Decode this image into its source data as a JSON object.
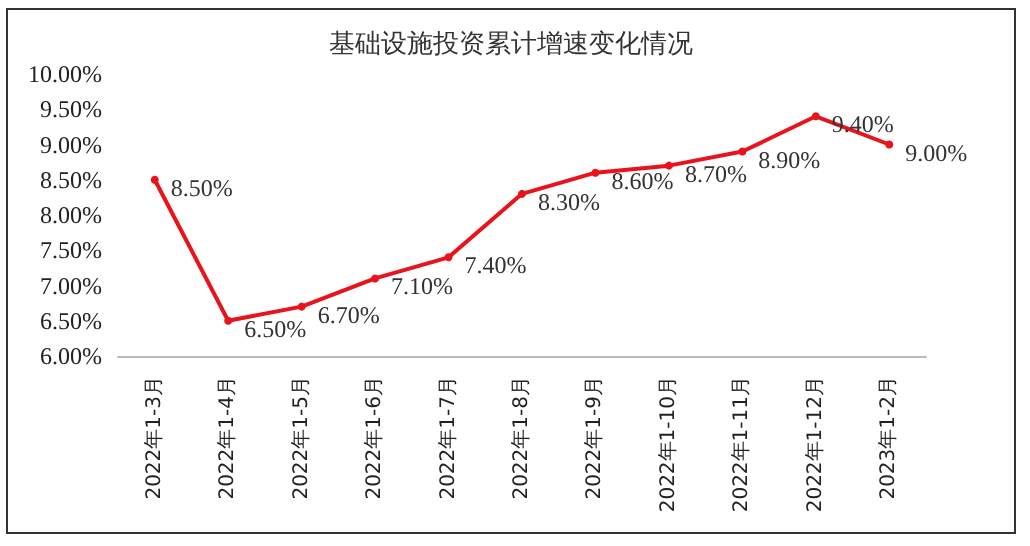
{
  "chart_data": {
    "type": "line",
    "title": "基础设施投资累计增速变化情况",
    "categories": [
      "2022年1-3月",
      "2022年1-4月",
      "2022年1-5月",
      "2022年1-6月",
      "2022年1-7月",
      "2022年1-8月",
      "2022年1-9月",
      "2022年1-10月",
      "2022年1-11月",
      "2022年1-12月",
      "2023年1-2月"
    ],
    "series": [
      {
        "color": "#e8131b",
        "values": [
          8.5,
          6.5,
          6.7,
          7.1,
          7.4,
          8.3,
          8.6,
          8.7,
          8.9,
          9.4,
          9.0
        ],
        "value_labels": [
          "8.50%",
          "6.50%",
          "6.70%",
          "7.10%",
          "7.40%",
          "8.30%",
          "8.60%",
          "8.70%",
          "8.90%",
          "9.40%",
          "9.00%"
        ]
      }
    ],
    "ylim": [
      6,
      10
    ],
    "yticks": [
      {
        "value": 6,
        "label": "6.00%"
      },
      {
        "value": 6.5,
        "label": "6.50%"
      },
      {
        "value": 7,
        "label": "7.00%"
      },
      {
        "value": 7.5,
        "label": "7.50%"
      },
      {
        "value": 8,
        "label": "8.00%"
      },
      {
        "value": 8.5,
        "label": "8.50%"
      },
      {
        "value": 9,
        "label": "9.00%"
      },
      {
        "value": 9.5,
        "label": "9.50%"
      },
      {
        "value": 10,
        "label": "10.00%"
      }
    ],
    "grid": false,
    "marker": "circle",
    "line_style": "solid"
  }
}
